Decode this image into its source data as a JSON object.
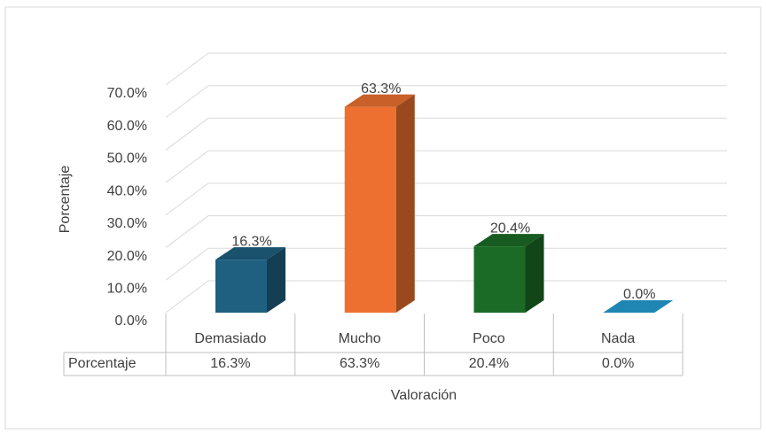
{
  "chart_data": {
    "type": "bar3d",
    "categories": [
      "Demasiado",
      "Mucho",
      "Poco",
      "Nada"
    ],
    "series": [
      {
        "name": "Porcentaje",
        "values": [
          16.3,
          63.3,
          20.4,
          0.0
        ],
        "value_labels": [
          "16.3%",
          "63.3%",
          "20.4%",
          "0.0%"
        ],
        "colors": [
          "#1f5f80",
          "#ed7030",
          "#1b6b26",
          "#1f86b3"
        ]
      }
    ],
    "ylim": [
      0,
      70
    ],
    "yticks": [
      {
        "value": 0,
        "label": "0.0%"
      },
      {
        "value": 10,
        "label": "10.0%"
      },
      {
        "value": 20,
        "label": "20.0%"
      },
      {
        "value": 30,
        "label": "30.0%"
      },
      {
        "value": 40,
        "label": "40.0%"
      },
      {
        "value": 50,
        "label": "50.0%"
      },
      {
        "value": 60,
        "label": "60.0%"
      },
      {
        "value": 70,
        "label": "70.0%"
      }
    ],
    "y_label": "Porcentaje",
    "x_label": "Valoración",
    "grid": true,
    "data_table": true
  }
}
